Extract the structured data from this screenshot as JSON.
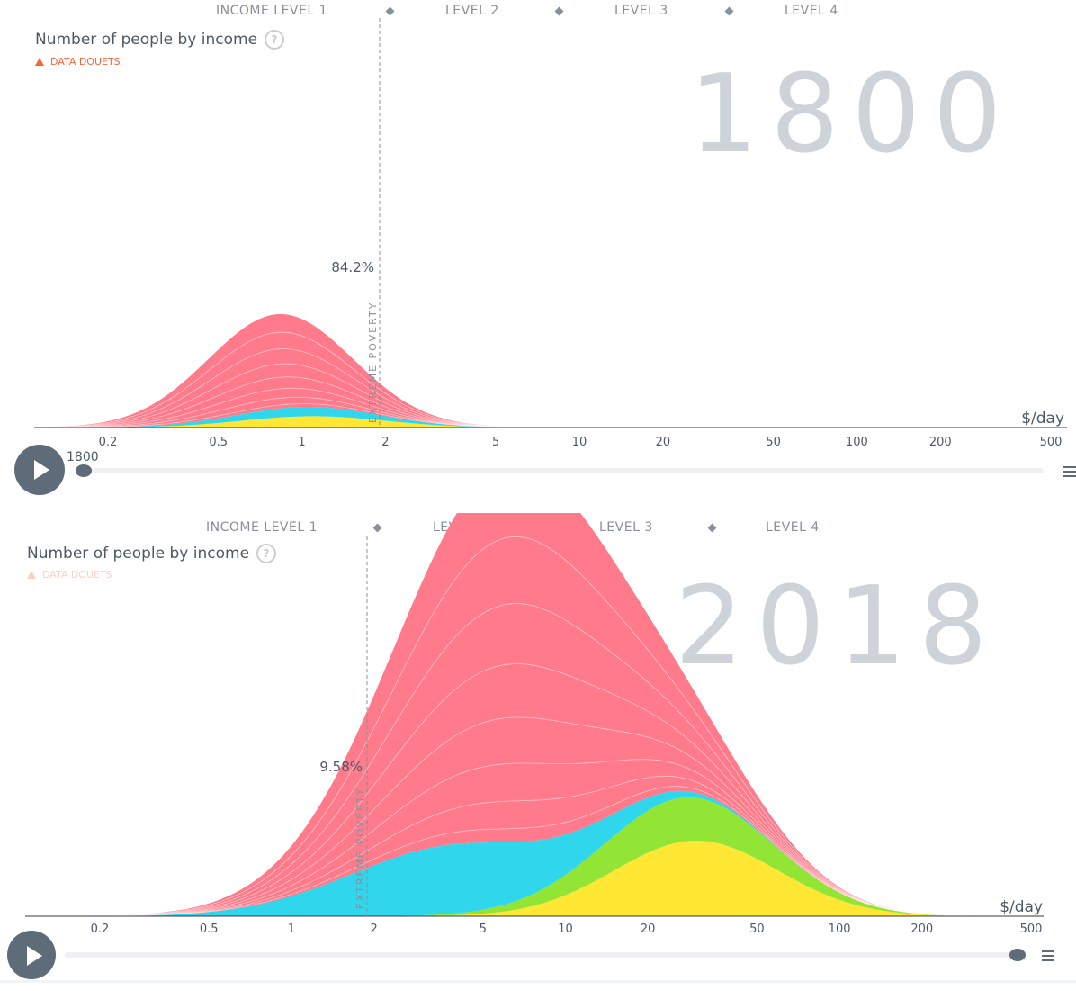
{
  "panels": [
    {
      "levels": {
        "level1": "INCOME LEVEL 1",
        "level2": "LEVEL 2",
        "level3": "LEVEL 3",
        "level4": "LEVEL 4"
      },
      "title": "Number of people by income",
      "help_icon": "question-circle-icon",
      "data_doubts": "DATA DOUETS",
      "year": "1800",
      "poverty_label": "EXTREME POVERTY",
      "poverty_pct": "84.2%",
      "unit_label": "$/day",
      "slider_year": "1800",
      "slider_progress": 0,
      "play_icon": "play-icon",
      "speed_icon": "speed-icon"
    },
    {
      "levels": {
        "level1": "INCOME LEVEL 1",
        "level2": "LEVEL 2",
        "level3": "LEVEL 3",
        "level4": "LEVEL 4"
      },
      "title": "Number of people by income",
      "help_icon": "question-circle-icon",
      "data_doubts": "DATA DOUETS",
      "year": "2018",
      "poverty_label": "EXTREME POVERTY",
      "poverty_pct": "9.58%",
      "unit_label": "$/day",
      "slider_year": "",
      "slider_progress": 1,
      "play_icon": "play-icon",
      "speed_icon": "speed-icon"
    }
  ],
  "colors": {
    "red": "#ff7a8a",
    "blue": "#2fd6ec",
    "green": "#93e535",
    "yellow": "#ffe733"
  },
  "chart_data": [
    {
      "type": "area",
      "title": "Number of people by income",
      "year": "1800",
      "xlabel": "$/day",
      "x_scale": "log",
      "x_ticks": [
        "0.2",
        "0.5",
        "1",
        "2",
        "5",
        "10",
        "20",
        "50",
        "100",
        "200",
        "500"
      ],
      "poverty_line": 1.9,
      "poverty_share": "84.2%",
      "series": [
        {
          "color": "#ff7a8a",
          "peak_x": 0.8,
          "width": 0.6,
          "height": 1.0
        },
        {
          "color": "#2fd6ec",
          "peak_x": 1.0,
          "width": 0.6,
          "height": 0.1
        },
        {
          "color": "#ffe733",
          "peak_x": 1.1,
          "width": 0.6,
          "height": 0.12
        }
      ],
      "ylim": [
        0,
        1
      ]
    },
    {
      "type": "area",
      "title": "Number of people by income",
      "year": "2018",
      "xlabel": "$/day",
      "x_scale": "log",
      "x_ticks": [
        "0.2",
        "0.5",
        "1",
        "2",
        "5",
        "10",
        "20",
        "50",
        "100",
        "200",
        "500"
      ],
      "poverty_line": 1.9,
      "poverty_share": "9.58%",
      "series": [
        {
          "color": "#ff7a8a",
          "peak_x": 6.5,
          "width": 0.95,
          "height": 3.0
        },
        {
          "color": "#2fd6ec",
          "peak_x": 4.0,
          "width": 0.9,
          "height": 0.55
        },
        {
          "color": "#93e535",
          "peak_x": 25.0,
          "width": 0.75,
          "height": 0.35
        },
        {
          "color": "#ffe733",
          "peak_x": 30.0,
          "width": 0.7,
          "height": 0.6
        }
      ],
      "ylim": [
        0,
        3.5
      ]
    }
  ]
}
